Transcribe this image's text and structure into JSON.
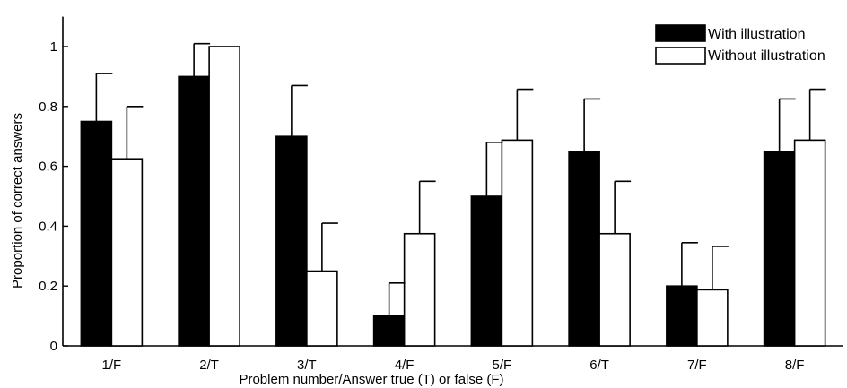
{
  "chart_data": {
    "type": "bar",
    "title": "",
    "xlabel": "Problem number/Answer true (T) or false (F)",
    "ylabel": "Proportion of correct answers",
    "ylim": [
      0,
      1.1
    ],
    "yticks": [
      "0",
      "0.2",
      "0.4",
      "0.6",
      "0.8",
      "1"
    ],
    "categories": [
      "1/F",
      "2/T",
      "3/T",
      "4/F",
      "5/F",
      "6/T",
      "7/F",
      "8/F"
    ],
    "legend_position": "top-right",
    "grid": false,
    "error_bars": "upper only",
    "series": [
      {
        "name": "With illustration",
        "color": "#000000",
        "values": [
          0.75,
          0.9,
          0.7,
          0.1,
          0.5,
          0.65,
          0.2,
          0.65
        ],
        "errors": [
          0.16,
          0.11,
          0.17,
          0.11,
          0.18,
          0.175,
          0.145,
          0.175
        ]
      },
      {
        "name": "Without illustration",
        "color": "#ffffff",
        "values": [
          0.625,
          1.0,
          0.25,
          0.375,
          0.6875,
          0.375,
          0.1875,
          0.6875
        ],
        "errors": [
          0.175,
          0.0,
          0.16,
          0.175,
          0.17,
          0.175,
          0.145,
          0.17
        ]
      }
    ]
  }
}
